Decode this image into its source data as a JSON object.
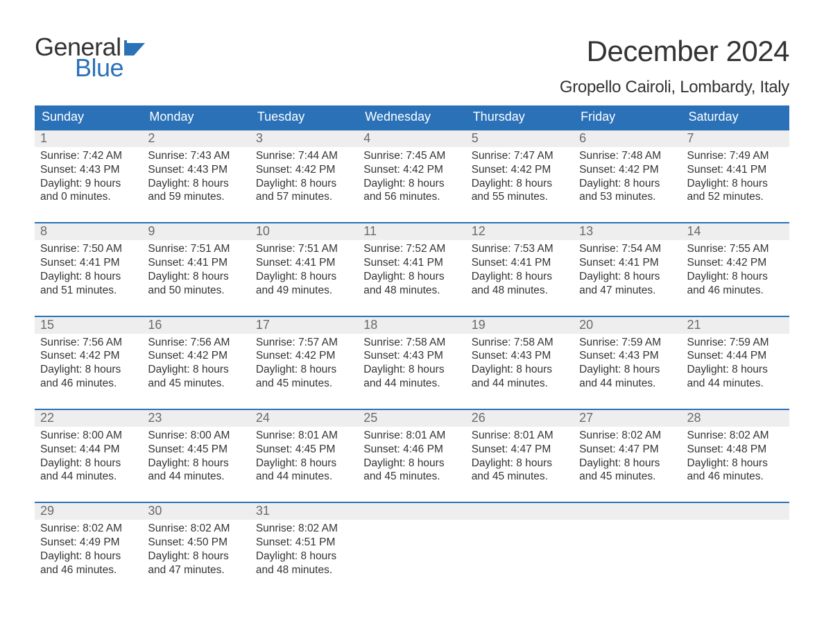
{
  "logo": {
    "word1": "General",
    "word2": "Blue",
    "flag_color": "#2a71b8"
  },
  "title": "December 2024",
  "location": "Gropello Cairoli, Lombardy, Italy",
  "colors": {
    "header_bg": "#2a71b8",
    "header_fg": "#ffffff",
    "daynum_bg": "#eeeeee",
    "daynum_fg": "#6a6a6a",
    "week_border": "#2a71b8",
    "text": "#333333",
    "background": "#ffffff"
  },
  "typography": {
    "title_fontsize": 42,
    "location_fontsize": 24,
    "dow_fontsize": 18,
    "daynum_fontsize": 18,
    "body_fontsize": 15.5,
    "font_family": "Arial"
  },
  "day_names": [
    "Sunday",
    "Monday",
    "Tuesday",
    "Wednesday",
    "Thursday",
    "Friday",
    "Saturday"
  ],
  "weeks": [
    [
      {
        "n": "1",
        "sunrise": "Sunrise: 7:42 AM",
        "sunset": "Sunset: 4:43 PM",
        "d1": "Daylight: 9 hours",
        "d2": "and 0 minutes."
      },
      {
        "n": "2",
        "sunrise": "Sunrise: 7:43 AM",
        "sunset": "Sunset: 4:43 PM",
        "d1": "Daylight: 8 hours",
        "d2": "and 59 minutes."
      },
      {
        "n": "3",
        "sunrise": "Sunrise: 7:44 AM",
        "sunset": "Sunset: 4:42 PM",
        "d1": "Daylight: 8 hours",
        "d2": "and 57 minutes."
      },
      {
        "n": "4",
        "sunrise": "Sunrise: 7:45 AM",
        "sunset": "Sunset: 4:42 PM",
        "d1": "Daylight: 8 hours",
        "d2": "and 56 minutes."
      },
      {
        "n": "5",
        "sunrise": "Sunrise: 7:47 AM",
        "sunset": "Sunset: 4:42 PM",
        "d1": "Daylight: 8 hours",
        "d2": "and 55 minutes."
      },
      {
        "n": "6",
        "sunrise": "Sunrise: 7:48 AM",
        "sunset": "Sunset: 4:42 PM",
        "d1": "Daylight: 8 hours",
        "d2": "and 53 minutes."
      },
      {
        "n": "7",
        "sunrise": "Sunrise: 7:49 AM",
        "sunset": "Sunset: 4:41 PM",
        "d1": "Daylight: 8 hours",
        "d2": "and 52 minutes."
      }
    ],
    [
      {
        "n": "8",
        "sunrise": "Sunrise: 7:50 AM",
        "sunset": "Sunset: 4:41 PM",
        "d1": "Daylight: 8 hours",
        "d2": "and 51 minutes."
      },
      {
        "n": "9",
        "sunrise": "Sunrise: 7:51 AM",
        "sunset": "Sunset: 4:41 PM",
        "d1": "Daylight: 8 hours",
        "d2": "and 50 minutes."
      },
      {
        "n": "10",
        "sunrise": "Sunrise: 7:51 AM",
        "sunset": "Sunset: 4:41 PM",
        "d1": "Daylight: 8 hours",
        "d2": "and 49 minutes."
      },
      {
        "n": "11",
        "sunrise": "Sunrise: 7:52 AM",
        "sunset": "Sunset: 4:41 PM",
        "d1": "Daylight: 8 hours",
        "d2": "and 48 minutes."
      },
      {
        "n": "12",
        "sunrise": "Sunrise: 7:53 AM",
        "sunset": "Sunset: 4:41 PM",
        "d1": "Daylight: 8 hours",
        "d2": "and 48 minutes."
      },
      {
        "n": "13",
        "sunrise": "Sunrise: 7:54 AM",
        "sunset": "Sunset: 4:41 PM",
        "d1": "Daylight: 8 hours",
        "d2": "and 47 minutes."
      },
      {
        "n": "14",
        "sunrise": "Sunrise: 7:55 AM",
        "sunset": "Sunset: 4:42 PM",
        "d1": "Daylight: 8 hours",
        "d2": "and 46 minutes."
      }
    ],
    [
      {
        "n": "15",
        "sunrise": "Sunrise: 7:56 AM",
        "sunset": "Sunset: 4:42 PM",
        "d1": "Daylight: 8 hours",
        "d2": "and 46 minutes."
      },
      {
        "n": "16",
        "sunrise": "Sunrise: 7:56 AM",
        "sunset": "Sunset: 4:42 PM",
        "d1": "Daylight: 8 hours",
        "d2": "and 45 minutes."
      },
      {
        "n": "17",
        "sunrise": "Sunrise: 7:57 AM",
        "sunset": "Sunset: 4:42 PM",
        "d1": "Daylight: 8 hours",
        "d2": "and 45 minutes."
      },
      {
        "n": "18",
        "sunrise": "Sunrise: 7:58 AM",
        "sunset": "Sunset: 4:43 PM",
        "d1": "Daylight: 8 hours",
        "d2": "and 44 minutes."
      },
      {
        "n": "19",
        "sunrise": "Sunrise: 7:58 AM",
        "sunset": "Sunset: 4:43 PM",
        "d1": "Daylight: 8 hours",
        "d2": "and 44 minutes."
      },
      {
        "n": "20",
        "sunrise": "Sunrise: 7:59 AM",
        "sunset": "Sunset: 4:43 PM",
        "d1": "Daylight: 8 hours",
        "d2": "and 44 minutes."
      },
      {
        "n": "21",
        "sunrise": "Sunrise: 7:59 AM",
        "sunset": "Sunset: 4:44 PM",
        "d1": "Daylight: 8 hours",
        "d2": "and 44 minutes."
      }
    ],
    [
      {
        "n": "22",
        "sunrise": "Sunrise: 8:00 AM",
        "sunset": "Sunset: 4:44 PM",
        "d1": "Daylight: 8 hours",
        "d2": "and 44 minutes."
      },
      {
        "n": "23",
        "sunrise": "Sunrise: 8:00 AM",
        "sunset": "Sunset: 4:45 PM",
        "d1": "Daylight: 8 hours",
        "d2": "and 44 minutes."
      },
      {
        "n": "24",
        "sunrise": "Sunrise: 8:01 AM",
        "sunset": "Sunset: 4:45 PM",
        "d1": "Daylight: 8 hours",
        "d2": "and 44 minutes."
      },
      {
        "n": "25",
        "sunrise": "Sunrise: 8:01 AM",
        "sunset": "Sunset: 4:46 PM",
        "d1": "Daylight: 8 hours",
        "d2": "and 45 minutes."
      },
      {
        "n": "26",
        "sunrise": "Sunrise: 8:01 AM",
        "sunset": "Sunset: 4:47 PM",
        "d1": "Daylight: 8 hours",
        "d2": "and 45 minutes."
      },
      {
        "n": "27",
        "sunrise": "Sunrise: 8:02 AM",
        "sunset": "Sunset: 4:47 PM",
        "d1": "Daylight: 8 hours",
        "d2": "and 45 minutes."
      },
      {
        "n": "28",
        "sunrise": "Sunrise: 8:02 AM",
        "sunset": "Sunset: 4:48 PM",
        "d1": "Daylight: 8 hours",
        "d2": "and 46 minutes."
      }
    ],
    [
      {
        "n": "29",
        "sunrise": "Sunrise: 8:02 AM",
        "sunset": "Sunset: 4:49 PM",
        "d1": "Daylight: 8 hours",
        "d2": "and 46 minutes."
      },
      {
        "n": "30",
        "sunrise": "Sunrise: 8:02 AM",
        "sunset": "Sunset: 4:50 PM",
        "d1": "Daylight: 8 hours",
        "d2": "and 47 minutes."
      },
      {
        "n": "31",
        "sunrise": "Sunrise: 8:02 AM",
        "sunset": "Sunset: 4:51 PM",
        "d1": "Daylight: 8 hours",
        "d2": "and 48 minutes."
      },
      {
        "empty": true
      },
      {
        "empty": true
      },
      {
        "empty": true
      },
      {
        "empty": true
      }
    ]
  ]
}
